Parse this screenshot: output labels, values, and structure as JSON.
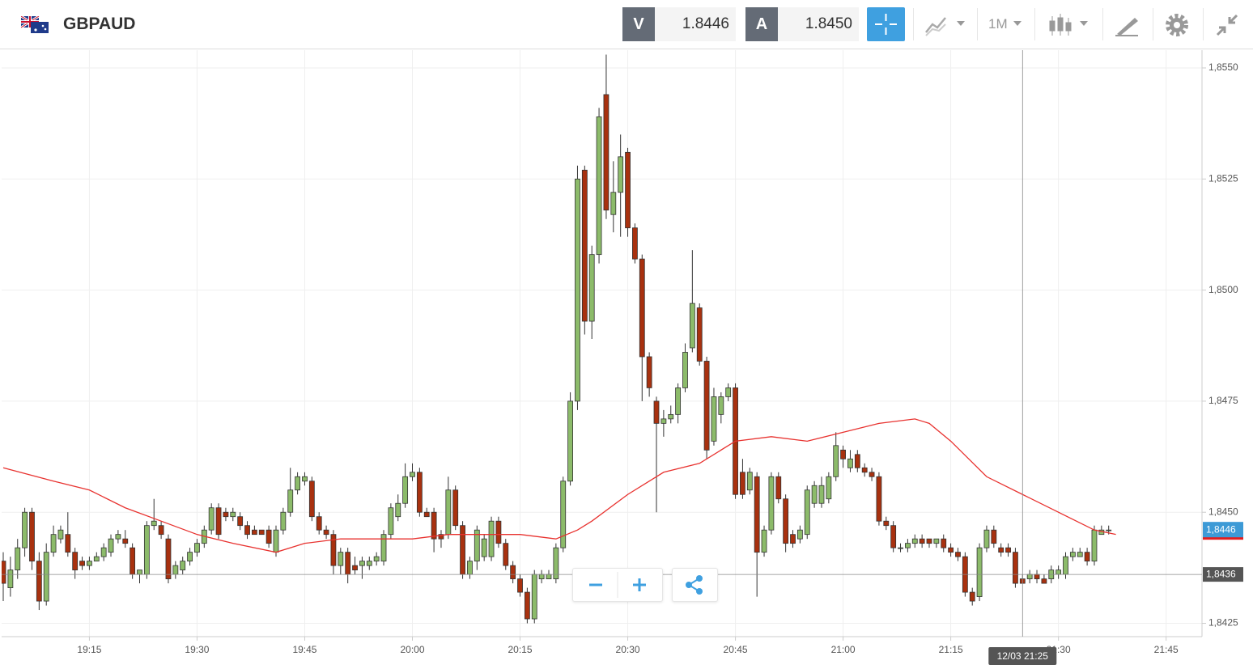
{
  "header": {
    "symbol": "GBPAUD",
    "bid_label": "V",
    "bid": "1.8446",
    "ask_label": "A",
    "ask": "1.8450",
    "timeframe": "1M"
  },
  "chart_data": {
    "type": "candlestick",
    "x": [
      "19:03",
      "19:04",
      "19:05",
      "19:06",
      "19:07",
      "19:08",
      "19:09",
      "19:10",
      "19:11",
      "19:12",
      "19:13",
      "19:14",
      "19:15",
      "19:16",
      "19:17",
      "19:18",
      "19:19",
      "19:20",
      "19:21",
      "19:22",
      "19:23",
      "19:24",
      "19:25",
      "19:26",
      "19:27",
      "19:28",
      "19:29",
      "19:30",
      "19:31",
      "19:32",
      "19:33",
      "19:34",
      "19:35",
      "19:36",
      "19:37",
      "19:38",
      "19:39",
      "19:40",
      "19:41",
      "19:42",
      "19:43",
      "19:44",
      "19:45",
      "19:46",
      "19:47",
      "19:48",
      "19:49",
      "19:50",
      "19:51",
      "19:52",
      "19:53",
      "19:54",
      "19:55",
      "19:56",
      "19:57",
      "19:58",
      "19:59",
      "20:00",
      "20:01",
      "20:02",
      "20:03",
      "20:04",
      "20:05",
      "20:06",
      "20:07",
      "20:08",
      "20:09",
      "20:10",
      "20:11",
      "20:12",
      "20:13",
      "20:14",
      "20:15",
      "20:16",
      "20:17",
      "20:18",
      "20:19",
      "20:20",
      "20:21",
      "20:22",
      "20:23",
      "20:24",
      "20:25",
      "20:26",
      "20:27",
      "20:28",
      "20:29",
      "20:30",
      "20:31",
      "20:32",
      "20:33",
      "20:34",
      "20:35",
      "20:36",
      "20:37",
      "20:38",
      "20:39",
      "20:40",
      "20:41",
      "20:42",
      "20:43",
      "20:44",
      "20:45",
      "20:46",
      "20:47",
      "20:48",
      "20:49",
      "20:50",
      "20:51",
      "20:52",
      "20:53",
      "20:54",
      "20:55",
      "20:56",
      "20:57",
      "20:58",
      "20:59",
      "21:00",
      "21:01",
      "21:02",
      "21:03",
      "21:04",
      "21:05",
      "21:06",
      "21:07",
      "21:08",
      "21:09",
      "21:10",
      "21:11",
      "21:12",
      "21:13",
      "21:14",
      "21:15",
      "21:16",
      "21:17",
      "21:18",
      "21:19",
      "21:20",
      "21:21",
      "21:22",
      "21:23",
      "21:24",
      "21:25",
      "21:26",
      "21:27",
      "21:28",
      "21:29",
      "21:30",
      "21:31",
      "21:32",
      "21:33",
      "21:34",
      "21:35",
      "21:36",
      "21:37"
    ],
    "candles": [
      [
        1.8439,
        1.8441,
        1.843,
        1.8434
      ],
      [
        1.8433,
        1.844,
        1.8431,
        1.8437
      ],
      [
        1.8437,
        1.8444,
        1.8435,
        1.8442
      ],
      [
        1.8442,
        1.8451,
        1.844,
        1.845
      ],
      [
        1.845,
        1.8451,
        1.8437,
        1.8439
      ],
      [
        1.8439,
        1.8441,
        1.8428,
        1.843
      ],
      [
        1.843,
        1.8443,
        1.8429,
        1.8441
      ],
      [
        1.8441,
        1.8447,
        1.844,
        1.8445
      ],
      [
        1.8444,
        1.8447,
        1.8443,
        1.8446
      ],
      [
        1.8445,
        1.845,
        1.844,
        1.8441
      ],
      [
        1.8441,
        1.8442,
        1.8435,
        1.8437
      ],
      [
        1.8439,
        1.844,
        1.8437,
        1.8438
      ],
      [
        1.8438,
        1.844,
        1.8437,
        1.8439
      ],
      [
        1.8439,
        1.8441,
        1.8439,
        1.844
      ],
      [
        1.844,
        1.8443,
        1.8439,
        1.8442
      ],
      [
        1.8441,
        1.8445,
        1.844,
        1.8444
      ],
      [
        1.8444,
        1.8446,
        1.8443,
        1.8445
      ],
      [
        1.8444,
        1.8446,
        1.8442,
        1.8443
      ],
      [
        1.8442,
        1.8443,
        1.8435,
        1.8436
      ],
      [
        1.8436,
        1.8437,
        1.8434,
        1.8437
      ],
      [
        1.8436,
        1.8448,
        1.8435,
        1.8447
      ],
      [
        1.8447,
        1.8453,
        1.8446,
        1.8448
      ],
      [
        1.8447,
        1.8448,
        1.8444,
        1.8445
      ],
      [
        1.8444,
        1.8445,
        1.8434,
        1.8435
      ],
      [
        1.8436,
        1.8439,
        1.8435,
        1.8438
      ],
      [
        1.8437,
        1.844,
        1.8436,
        1.8439
      ],
      [
        1.8439,
        1.8442,
        1.8438,
        1.8441
      ],
      [
        1.8441,
        1.8444,
        1.844,
        1.8443
      ],
      [
        1.8443,
        1.8447,
        1.8442,
        1.8446
      ],
      [
        1.8446,
        1.8452,
        1.8445,
        1.8451
      ],
      [
        1.8451,
        1.8452,
        1.8444,
        1.8445
      ],
      [
        1.845,
        1.8451,
        1.8448,
        1.8449
      ],
      [
        1.8449,
        1.8451,
        1.8448,
        1.845
      ],
      [
        1.8449,
        1.845,
        1.8446,
        1.8447
      ],
      [
        1.8447,
        1.8448,
        1.8444,
        1.8445
      ],
      [
        1.8446,
        1.8447,
        1.8445,
        1.8445
      ],
      [
        1.8446,
        1.8446,
        1.8445,
        1.8445
      ],
      [
        1.8446,
        1.8447,
        1.8442,
        1.8443
      ],
      [
        1.8441,
        1.8447,
        1.844,
        1.8446
      ],
      [
        1.8446,
        1.8451,
        1.8445,
        1.845
      ],
      [
        1.845,
        1.846,
        1.8449,
        1.8455
      ],
      [
        1.8455,
        1.8459,
        1.8454,
        1.8458
      ],
      [
        1.8457,
        1.8459,
        1.8456,
        1.8458
      ],
      [
        1.8457,
        1.8458,
        1.8448,
        1.8449
      ],
      [
        1.8449,
        1.845,
        1.8445,
        1.8446
      ],
      [
        1.8446,
        1.8447,
        1.8444,
        1.8445
      ],
      [
        1.8445,
        1.8446,
        1.8436,
        1.8438
      ],
      [
        1.8438,
        1.8442,
        1.8436,
        1.8441
      ],
      [
        1.8441,
        1.8442,
        1.8434,
        1.8436
      ],
      [
        1.8438,
        1.844,
        1.8436,
        1.8437
      ],
      [
        1.8438,
        1.844,
        1.8435,
        1.8439
      ],
      [
        1.8438,
        1.844,
        1.8437,
        1.8439
      ],
      [
        1.8439,
        1.8441,
        1.8438,
        1.844
      ],
      [
        1.8439,
        1.8446,
        1.8438,
        1.8445
      ],
      [
        1.8445,
        1.8452,
        1.8444,
        1.8451
      ],
      [
        1.8449,
        1.8454,
        1.8448,
        1.8452
      ],
      [
        1.8452,
        1.8461,
        1.8451,
        1.8458
      ],
      [
        1.8458,
        1.8461,
        1.8457,
        1.8459
      ],
      [
        1.8459,
        1.846,
        1.8449,
        1.845
      ],
      [
        1.845,
        1.8451,
        1.8449,
        1.8449
      ],
      [
        1.845,
        1.8451,
        1.8441,
        1.8444
      ],
      [
        1.8445,
        1.8446,
        1.8442,
        1.8444
      ],
      [
        1.8445,
        1.8458,
        1.8444,
        1.8455
      ],
      [
        1.8455,
        1.8456,
        1.8446,
        1.8447
      ],
      [
        1.8447,
        1.8448,
        1.8435,
        1.8436
      ],
      [
        1.8436,
        1.844,
        1.8435,
        1.8439
      ],
      [
        1.8439,
        1.8447,
        1.8437,
        1.8446
      ],
      [
        1.844,
        1.8445,
        1.8439,
        1.8444
      ],
      [
        1.844,
        1.8449,
        1.8439,
        1.8448
      ],
      [
        1.8448,
        1.8449,
        1.8442,
        1.8443
      ],
      [
        1.8443,
        1.8444,
        1.8437,
        1.8438
      ],
      [
        1.8438,
        1.8439,
        1.8434,
        1.8435
      ],
      [
        1.8435,
        1.8436,
        1.8431,
        1.8432
      ],
      [
        1.8432,
        1.8433,
        1.8425,
        1.8426
      ],
      [
        1.8426,
        1.8437,
        1.8425,
        1.8436
      ],
      [
        1.8435,
        1.8437,
        1.8434,
        1.8436
      ],
      [
        1.8435,
        1.8437,
        1.8435,
        1.8436
      ],
      [
        1.8435,
        1.8443,
        1.8434,
        1.8442
      ],
      [
        1.8442,
        1.8458,
        1.8441,
        1.8457
      ],
      [
        1.8457,
        1.8477,
        1.8456,
        1.8475
      ],
      [
        1.8475,
        1.8528,
        1.8473,
        1.8525
      ],
      [
        1.8527,
        1.8528,
        1.849,
        1.8493
      ],
      [
        1.8493,
        1.851,
        1.8489,
        1.8508
      ],
      [
        1.8508,
        1.8541,
        1.8506,
        1.8539
      ],
      [
        1.8544,
        1.8553,
        1.8516,
        1.8518
      ],
      [
        1.8517,
        1.8529,
        1.8513,
        1.8522
      ],
      [
        1.8522,
        1.8535,
        1.8512,
        1.853
      ],
      [
        1.8531,
        1.8532,
        1.8512,
        1.8514
      ],
      [
        1.8514,
        1.8515,
        1.8506,
        1.8507
      ],
      [
        1.8507,
        1.8508,
        1.8475,
        1.8485
      ],
      [
        1.8485,
        1.8486,
        1.8476,
        1.8478
      ],
      [
        1.8475,
        1.8476,
        1.845,
        1.847
      ],
      [
        1.847,
        1.8473,
        1.8467,
        1.8471
      ],
      [
        1.8471,
        1.8474,
        1.847,
        1.8472
      ],
      [
        1.8472,
        1.8479,
        1.847,
        1.8478
      ],
      [
        1.8478,
        1.8488,
        1.8477,
        1.8486
      ],
      [
        1.8487,
        1.8509,
        1.8486,
        1.8497
      ],
      [
        1.8496,
        1.8497,
        1.8483,
        1.8484
      ],
      [
        1.8484,
        1.8485,
        1.8462,
        1.8464
      ],
      [
        1.8466,
        1.8478,
        1.8465,
        1.8476
      ],
      [
        1.8472,
        1.8477,
        1.847,
        1.8476
      ],
      [
        1.8476,
        1.8479,
        1.8475,
        1.8478
      ],
      [
        1.8478,
        1.8479,
        1.8453,
        1.8454
      ],
      [
        1.8459,
        1.8462,
        1.8453,
        1.8454
      ],
      [
        1.8455,
        1.846,
        1.8454,
        1.8459
      ],
      [
        1.8458,
        1.8459,
        1.8431,
        1.8441
      ],
      [
        1.8441,
        1.8447,
        1.844,
        1.8446
      ],
      [
        1.8446,
        1.8459,
        1.8445,
        1.8458
      ],
      [
        1.8458,
        1.8459,
        1.8452,
        1.8453
      ],
      [
        1.8453,
        1.8454,
        1.8441,
        1.8443
      ],
      [
        1.8445,
        1.8446,
        1.8442,
        1.8443
      ],
      [
        1.8444,
        1.8447,
        1.8443,
        1.8446
      ],
      [
        1.8445,
        1.8456,
        1.8444,
        1.8455
      ],
      [
        1.8452,
        1.8457,
        1.8451,
        1.8456
      ],
      [
        1.8452,
        1.8458,
        1.8451,
        1.8456
      ],
      [
        1.8453,
        1.8459,
        1.8452,
        1.8458
      ],
      [
        1.8458,
        1.8468,
        1.8457,
        1.8465
      ],
      [
        1.8464,
        1.8465,
        1.846,
        1.8462
      ],
      [
        1.846,
        1.8464,
        1.8459,
        1.8462
      ],
      [
        1.8463,
        1.8464,
        1.8459,
        1.846
      ],
      [
        1.846,
        1.8461,
        1.8458,
        1.8459
      ],
      [
        1.8459,
        1.846,
        1.8457,
        1.8458
      ],
      [
        1.8458,
        1.8459,
        1.8447,
        1.8448
      ],
      [
        1.8448,
        1.8449,
        1.8446,
        1.8447
      ],
      [
        1.8447,
        1.8448,
        1.8441,
        1.8442
      ],
      [
        1.8442,
        1.8443,
        1.8441,
        1.8442
      ],
      [
        1.8442,
        1.8444,
        1.8441,
        1.8443
      ],
      [
        1.8443,
        1.8445,
        1.8442,
        1.8444
      ],
      [
        1.8444,
        1.8445,
        1.8442,
        1.8443
      ],
      [
        1.8444,
        1.8444,
        1.8442,
        1.8443
      ],
      [
        1.8443,
        1.8444,
        1.8442,
        1.8444
      ],
      [
        1.8444,
        1.8445,
        1.8441,
        1.8442
      ],
      [
        1.8442,
        1.8443,
        1.844,
        1.8441
      ],
      [
        1.8441,
        1.8442,
        1.8439,
        1.844
      ],
      [
        1.844,
        1.8441,
        1.8431,
        1.8432
      ],
      [
        1.8432,
        1.8433,
        1.8429,
        1.843
      ],
      [
        1.8431,
        1.8443,
        1.843,
        1.8442
      ],
      [
        1.8442,
        1.8447,
        1.8441,
        1.8446
      ],
      [
        1.8446,
        1.8447,
        1.8442,
        1.8443
      ],
      [
        1.8442,
        1.8443,
        1.844,
        1.8441
      ],
      [
        1.8442,
        1.8443,
        1.844,
        1.8441
      ],
      [
        1.8441,
        1.8442,
        1.8433,
        1.8434
      ],
      [
        1.8435,
        1.8436,
        1.8434,
        1.8434
      ],
      [
        1.8435,
        1.8437,
        1.8434,
        1.8436
      ],
      [
        1.8436,
        1.8437,
        1.8434,
        1.8435
      ],
      [
        1.8435,
        1.8436,
        1.8434,
        1.8434
      ],
      [
        1.8435,
        1.8438,
        1.8434,
        1.8437
      ],
      [
        1.8436,
        1.8438,
        1.8435,
        1.8437
      ],
      [
        1.8436,
        1.8441,
        1.8435,
        1.844
      ],
      [
        1.844,
        1.8442,
        1.8439,
        1.8441
      ],
      [
        1.844,
        1.8442,
        1.844,
        1.8441
      ],
      [
        1.8441,
        1.8442,
        1.8438,
        1.8439
      ],
      [
        1.8439,
        1.8447,
        1.8438,
        1.8446
      ],
      [
        1.8445,
        1.8447,
        1.8445,
        1.8446
      ],
      [
        1.8446,
        1.8447,
        1.8445,
        1.8446
      ]
    ],
    "up_color": "#8cbb6a",
    "down_color": "#a8310f",
    "moving_average": {
      "color": "#e8322f",
      "x": [
        "19:03",
        "19:10",
        "19:15",
        "19:20",
        "19:25",
        "19:30",
        "19:35",
        "19:41",
        "19:45",
        "19:50",
        "19:55",
        "20:00",
        "20:05",
        "20:10",
        "20:15",
        "20:20",
        "20:23",
        "20:25",
        "20:30",
        "20:35",
        "20:40",
        "20:45",
        "20:50",
        "20:55",
        "21:00",
        "21:05",
        "21:10",
        "21:12",
        "21:15",
        "21:20",
        "21:25",
        "21:30",
        "21:35",
        "21:38"
      ],
      "values": [
        1.846,
        1.8457,
        1.8455,
        1.8451,
        1.8448,
        1.8445,
        1.8443,
        1.8441,
        1.8443,
        1.8444,
        1.8444,
        1.8444,
        1.8445,
        1.8445,
        1.8445,
        1.8444,
        1.8446,
        1.8448,
        1.8454,
        1.8459,
        1.8461,
        1.8466,
        1.8467,
        1.8466,
        1.8468,
        1.847,
        1.8471,
        1.847,
        1.8466,
        1.8458,
        1.8454,
        1.845,
        1.8446,
        1.8445
      ]
    },
    "xlim": [
      "19:03",
      "21:50"
    ],
    "xticks": [
      "19:15",
      "19:30",
      "19:45",
      "20:00",
      "20:15",
      "20:30",
      "20:45",
      "21:00",
      "21:15",
      "21:30",
      "21:45"
    ],
    "ylim": [
      1.8422,
      1.8554
    ],
    "yticks": [
      {
        "value": 1.8425,
        "label": "1,8425"
      },
      {
        "value": 1.845,
        "label": "1,8450"
      },
      {
        "value": 1.8475,
        "label": "1,8475"
      },
      {
        "value": 1.85,
        "label": "1,8500"
      },
      {
        "value": 1.8525,
        "label": "1,8525"
      },
      {
        "value": 1.855,
        "label": "1,8550"
      }
    ],
    "grid": true,
    "last_price": {
      "value": 1.8446,
      "label": "1,8446"
    },
    "crosshair": {
      "y": {
        "value": 1.8436,
        "label": "1,8436"
      },
      "x": {
        "value": "21:25",
        "label": "12/03 21:25"
      }
    }
  }
}
